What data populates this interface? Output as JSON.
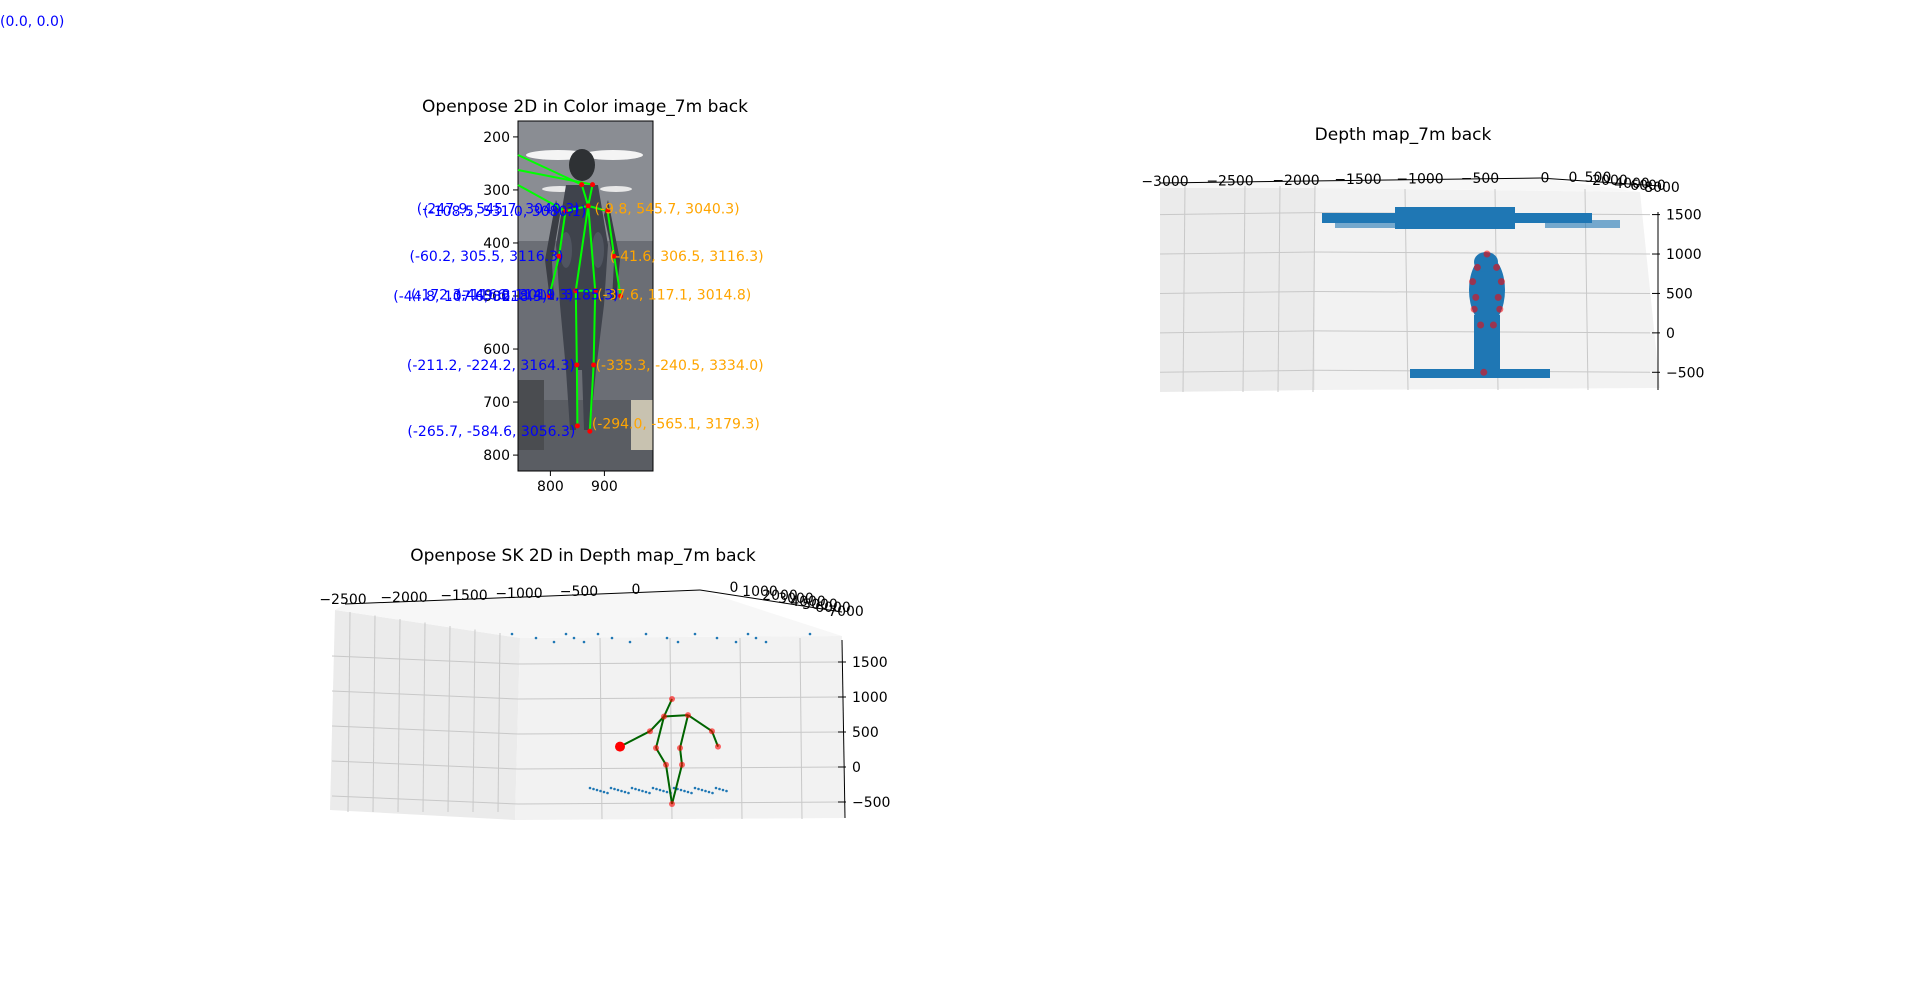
{
  "corner_label": "(0.0, 0.0)",
  "colors": {
    "annotation_left": "#0000ff",
    "annotation_right": "#ffa500",
    "skeleton_line": "#00ff00",
    "skeleton_3d": "#006400",
    "keypoint": "#ff0000",
    "cloud": "#1f77b4"
  },
  "chart_data": [
    {
      "type": "scatter",
      "title": "Openpose 2D in Color image_7m back",
      "xlabel": "",
      "ylabel": "",
      "xlim": [
        740,
        990
      ],
      "ylim": [
        830,
        170
      ],
      "x_ticks": [
        "800",
        "900"
      ],
      "y_ticks": [
        "200",
        "300",
        "400",
        "500",
        "600",
        "700",
        "800"
      ],
      "keypoints": [
        {
          "x": 858,
          "y": 290
        },
        {
          "x": 878,
          "y": 290
        },
        {
          "x": 828,
          "y": 340
        },
        {
          "x": 906,
          "y": 340
        },
        {
          "x": 870,
          "y": 330
        },
        {
          "x": 816,
          "y": 425
        },
        {
          "x": 918,
          "y": 425
        },
        {
          "x": 798,
          "y": 500
        },
        {
          "x": 930,
          "y": 500
        },
        {
          "x": 847,
          "y": 490
        },
        {
          "x": 883,
          "y": 490
        },
        {
          "x": 849,
          "y": 630
        },
        {
          "x": 880,
          "y": 630
        },
        {
          "x": 850,
          "y": 745
        },
        {
          "x": 873,
          "y": 755
        }
      ],
      "bones": [
        [
          0,
          4
        ],
        [
          1,
          4
        ],
        [
          2,
          4
        ],
        [
          3,
          4
        ],
        [
          2,
          5
        ],
        [
          5,
          7
        ],
        [
          3,
          6
        ],
        [
          6,
          8
        ],
        [
          4,
          9
        ],
        [
          4,
          10
        ],
        [
          9,
          11
        ],
        [
          10,
          12
        ],
        [
          11,
          13
        ],
        [
          12,
          14
        ],
        [
          9,
          10
        ]
      ],
      "annotations": [
        {
          "text": "(-247.9, 545.7, 3040.3)",
          "side": "left",
          "x": 858,
          "y": 335
        },
        {
          "text": "(-108.5, 531.0, 3080.1)",
          "side": "left",
          "x": 870,
          "y": 340
        },
        {
          "text": "(-9.8, 545.7, 3040.3)",
          "side": "right",
          "x": 878,
          "y": 335
        },
        {
          "text": "(-60.2, 305.5, 3116.3)",
          "side": "left",
          "x": 828,
          "y": 425
        },
        {
          "text": "(-41.6, 306.5, 3116.3)",
          "side": "right",
          "x": 906,
          "y": 425
        },
        {
          "text": "(-44.8, 107.6, 3218.3)",
          "side": "left",
          "x": 798,
          "y": 500
        },
        {
          "text": "(-172.3, 116.8, 3011.3)",
          "side": "left",
          "x": 847,
          "y": 497
        },
        {
          "text": "(-37.6, 117.1, 3014.8)",
          "side": "right",
          "x": 883,
          "y": 497
        },
        {
          "text": "(-449.6, 114.9, 3185.3)",
          "side": "left",
          "x": 930,
          "y": 497
        },
        {
          "text": "(-211.2, -224.2, 3164.3)",
          "side": "left",
          "x": 849,
          "y": 630
        },
        {
          "text": "(-335.3, -240.5, 3334.0)",
          "side": "right",
          "x": 880,
          "y": 630
        },
        {
          "text": "(-265.7, -584.6, 3056.3)",
          "side": "left",
          "x": 850,
          "y": 755
        },
        {
          "text": "(-294.0, -565.1, 3179.3)",
          "side": "right",
          "x": 873,
          "y": 740
        }
      ]
    },
    {
      "type": "scatter",
      "title": "Depth map_7m back",
      "xlabel": "",
      "ylabel": "",
      "zlabel": "",
      "x_ticks": [
        "−3000",
        "−2500",
        "−2000",
        "−1500",
        "−1000",
        "−500",
        "0",
        "500"
      ],
      "y_ticks": [
        "0",
        "2000",
        "4000",
        "6000",
        "8000"
      ],
      "z_ticks": [
        "1500",
        "1000",
        "500",
        "0",
        "−500"
      ],
      "zlim": [
        -750,
        1850
      ],
      "xlim": [
        -3000,
        1000
      ],
      "keypoints": [
        {
          "x": 0,
          "z": 1000
        },
        {
          "x": -60,
          "z": 830
        },
        {
          "x": 60,
          "z": 830
        },
        {
          "x": -90,
          "z": 650
        },
        {
          "x": 90,
          "z": 650
        },
        {
          "x": -70,
          "z": 450
        },
        {
          "x": 70,
          "z": 450
        },
        {
          "x": -80,
          "z": 300
        },
        {
          "x": 80,
          "z": 300
        },
        {
          "x": -40,
          "z": 100
        },
        {
          "x": 40,
          "z": 100
        },
        {
          "x": -20,
          "z": -500
        }
      ]
    },
    {
      "type": "line",
      "title": "Openpose SK 2D in Depth map_7m back",
      "xlabel": "",
      "ylabel": "",
      "zlabel": "",
      "x_ticks": [
        "−2500",
        "−2000",
        "−1500",
        "−1000",
        "−500",
        "0"
      ],
      "y_ticks": [
        "0",
        "1000",
        "2000",
        "3000",
        "4000",
        "5000",
        "6000",
        "7000"
      ],
      "z_ticks": [
        "1500",
        "1000",
        "500",
        "0",
        "−500"
      ],
      "zlim": [
        -700,
        1800
      ],
      "xlim": [
        -2600,
        700
      ],
      "joints": [
        {
          "x": 0,
          "z": 1000
        },
        {
          "x": -40,
          "z": 750
        },
        {
          "x": 80,
          "z": 770
        },
        {
          "x": -110,
          "z": 540
        },
        {
          "x": 200,
          "z": 540
        },
        {
          "x": -80,
          "z": 300
        },
        {
          "x": 40,
          "z": 300
        },
        {
          "x": -30,
          "z": 60
        },
        {
          "x": 50,
          "z": 60
        },
        {
          "x": 0,
          "z": -500
        },
        {
          "x": 230,
          "z": 320
        },
        {
          "x": -260,
          "z": 320
        }
      ],
      "bones": [
        [
          0,
          1
        ],
        [
          1,
          2
        ],
        [
          1,
          3
        ],
        [
          2,
          4
        ],
        [
          1,
          5
        ],
        [
          2,
          6
        ],
        [
          5,
          7
        ],
        [
          6,
          8
        ],
        [
          7,
          9
        ],
        [
          8,
          9
        ],
        [
          3,
          11
        ],
        [
          4,
          10
        ]
      ]
    }
  ]
}
